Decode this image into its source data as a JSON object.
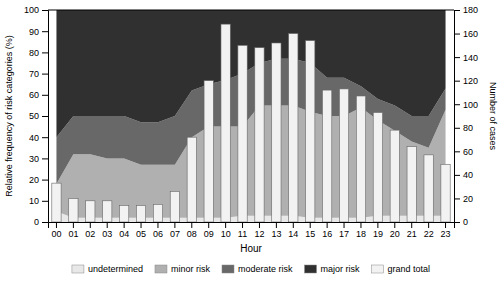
{
  "chart_data": {
    "type": "area",
    "stacked": true,
    "x_label": "Hour",
    "y_label": "Relative frequency of risk categories (%)",
    "y2_label": "Number of cases",
    "categories": [
      "00",
      "01",
      "02",
      "03",
      "04",
      "05",
      "06",
      "07",
      "08",
      "09",
      "10",
      "11",
      "12",
      "13",
      "14",
      "15",
      "16",
      "17",
      "18",
      "19",
      "20",
      "21",
      "22",
      "23"
    ],
    "series": [
      {
        "name": "undetermined",
        "type": "area",
        "color": "#e8e8e8",
        "values": [
          5,
          2,
          2,
          2,
          2,
          2,
          2,
          2,
          2,
          2,
          2,
          3,
          3,
          3,
          3,
          2,
          2,
          2,
          2,
          3,
          3,
          3,
          3,
          3
        ]
      },
      {
        "name": "minor risk",
        "type": "area",
        "color": "#b0b0b0",
        "values": [
          13,
          30,
          30,
          28,
          28,
          25,
          25,
          25,
          38,
          43,
          43,
          42,
          52,
          52,
          52,
          50,
          48,
          48,
          52,
          45,
          40,
          35,
          32,
          50
        ]
      },
      {
        "name": "moderate risk",
        "type": "area",
        "color": "#686868",
        "values": [
          22,
          18,
          18,
          20,
          20,
          20,
          20,
          23,
          22,
          20,
          22,
          25,
          20,
          22,
          22,
          23,
          18,
          18,
          10,
          10,
          12,
          12,
          15,
          10
        ]
      },
      {
        "name": "major risk",
        "type": "area",
        "color": "#303030",
        "values": [
          60,
          50,
          50,
          50,
          50,
          53,
          53,
          50,
          38,
          35,
          33,
          30,
          25,
          23,
          23,
          25,
          32,
          32,
          36,
          42,
          45,
          50,
          50,
          37
        ]
      },
      {
        "name": "grand total",
        "type": "bar",
        "axis": "y2",
        "color": "#f2f2f2",
        "values": [
          33,
          20,
          18,
          18,
          14,
          14,
          15,
          26,
          72,
          120,
          168,
          150,
          148,
          152,
          160,
          154,
          112,
          113,
          107,
          93,
          78,
          64,
          57,
          49
        ]
      }
    ],
    "ylim": [
      0,
      100
    ],
    "yticks": [
      0,
      10,
      20,
      30,
      40,
      50,
      60,
      70,
      80,
      90,
      100
    ],
    "y2lim": [
      0,
      180
    ],
    "y2ticks": [
      0,
      20,
      40,
      60,
      80,
      100,
      120,
      140,
      160,
      180
    ],
    "legend": "bottom",
    "grid": false
  }
}
